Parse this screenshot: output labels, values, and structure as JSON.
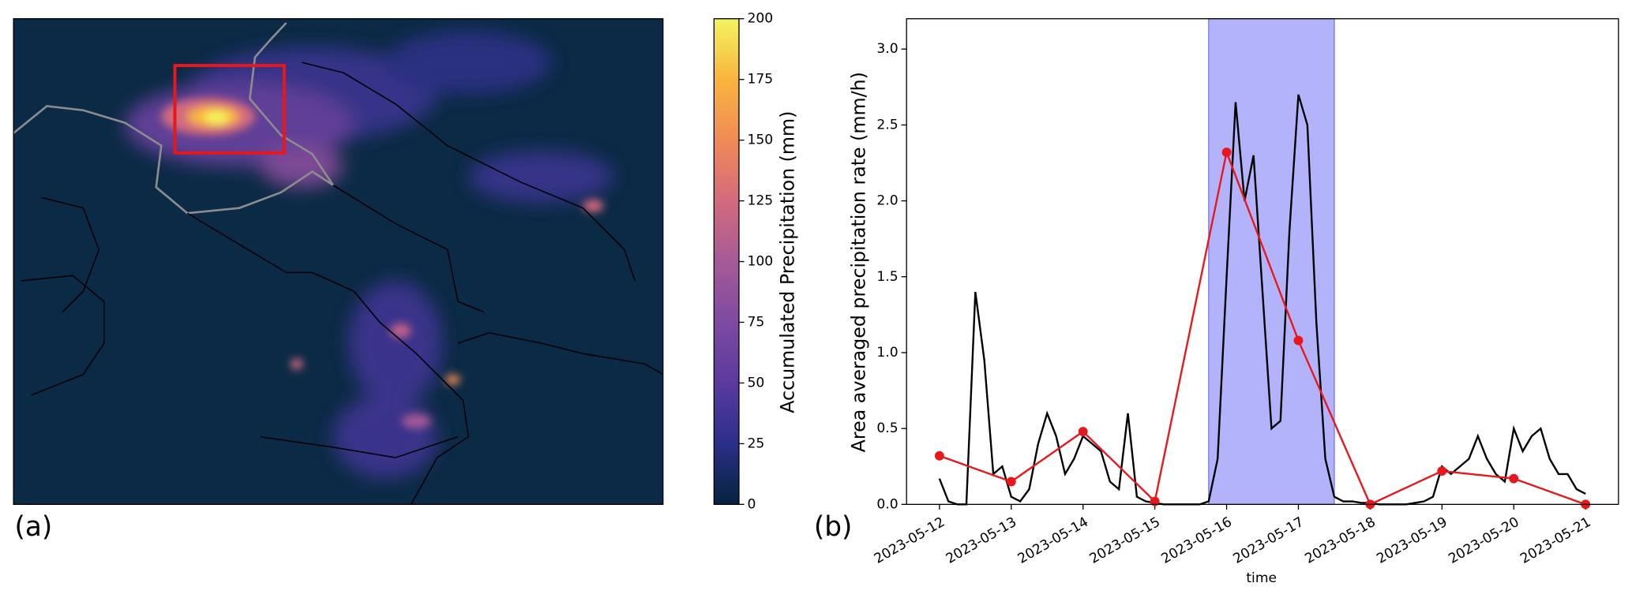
{
  "chart_data": [
    {
      "type": "heatmap",
      "panel_label": "(a)",
      "colorbar": {
        "label": "Accumulated Precipitation (mm)",
        "lim": [
          0,
          200
        ],
        "ticks": [
          0,
          25,
          50,
          75,
          100,
          125,
          150,
          175,
          200
        ],
        "colormap": [
          "#04233e",
          "#2b2f88",
          "#5b3a9e",
          "#7d4aa2",
          "#a65a96",
          "#d46a7d",
          "#f08a57",
          "#fab43e",
          "#f3f460"
        ]
      }
    },
    {
      "type": "line",
      "panel_label": "(b)",
      "xlabel": "time",
      "ylabel": "Area averaged precipitation rate (mm/h)",
      "xlim": [
        "2023-05-11T13:00",
        "2023-05-21T11:00"
      ],
      "xticks": [
        "2023-05-12",
        "2023-05-13",
        "2023-05-14",
        "2023-05-15",
        "2023-05-16",
        "2023-05-17",
        "2023-05-18",
        "2023-05-19",
        "2023-05-20",
        "2023-05-21"
      ],
      "ylim": [
        0,
        3.2
      ],
      "yticks": [
        {
          "value": 0,
          "label": "0.0"
        },
        0.5,
        {
          "value": 1,
          "label": "1.0"
        },
        1.5,
        {
          "value": 2,
          "label": "2.0"
        },
        2.5,
        {
          "value": 3,
          "label": "3.0"
        }
      ],
      "span": {
        "x": [
          "2023-05-15T18:00",
          "2023-05-17T12:00"
        ],
        "color": "#b3b3fb",
        "edge": "#7777f0"
      },
      "series": [
        {
          "color": "#000000",
          "marker": false,
          "x": [
            "2023-05-12T00:00",
            "2023-05-12T03:00",
            "2023-05-12T06:00",
            "2023-05-12T09:00",
            "2023-05-12T12:00",
            "2023-05-12T15:00",
            "2023-05-12T18:00",
            "2023-05-12T21:00",
            "2023-05-13T00:00",
            "2023-05-13T03:00",
            "2023-05-13T06:00",
            "2023-05-13T09:00",
            "2023-05-13T12:00",
            "2023-05-13T15:00",
            "2023-05-13T18:00",
            "2023-05-13T21:00",
            "2023-05-14T00:00",
            "2023-05-14T03:00",
            "2023-05-14T06:00",
            "2023-05-14T09:00",
            "2023-05-14T12:00",
            "2023-05-14T15:00",
            "2023-05-14T18:00",
            "2023-05-14T21:00",
            "2023-05-15T00:00",
            "2023-05-15T03:00",
            "2023-05-15T06:00",
            "2023-05-15T09:00",
            "2023-05-15T12:00",
            "2023-05-15T15:00",
            "2023-05-15T18:00",
            "2023-05-15T21:00",
            "2023-05-16T00:00",
            "2023-05-16T03:00",
            "2023-05-16T06:00",
            "2023-05-16T09:00",
            "2023-05-16T12:00",
            "2023-05-16T15:00",
            "2023-05-16T18:00",
            "2023-05-16T21:00",
            "2023-05-17T00:00",
            "2023-05-17T03:00",
            "2023-05-17T06:00",
            "2023-05-17T09:00",
            "2023-05-17T12:00",
            "2023-05-17T15:00",
            "2023-05-17T18:00",
            "2023-05-17T21:00",
            "2023-05-18T00:00",
            "2023-05-18T03:00",
            "2023-05-18T06:00",
            "2023-05-18T09:00",
            "2023-05-18T12:00",
            "2023-05-18T15:00",
            "2023-05-18T18:00",
            "2023-05-18T21:00",
            "2023-05-19T00:00",
            "2023-05-19T03:00",
            "2023-05-19T06:00",
            "2023-05-19T09:00",
            "2023-05-19T12:00",
            "2023-05-19T15:00",
            "2023-05-19T18:00",
            "2023-05-19T21:00",
            "2023-05-20T00:00",
            "2023-05-20T03:00",
            "2023-05-20T06:00",
            "2023-05-20T09:00",
            "2023-05-20T12:00",
            "2023-05-20T15:00",
            "2023-05-20T18:00",
            "2023-05-20T21:00",
            "2023-05-21T00:00"
          ],
          "values": [
            0.17,
            0.02,
            0,
            0,
            1.4,
            0.95,
            0.2,
            0.25,
            0.05,
            0.02,
            0.1,
            0.4,
            0.6,
            0.45,
            0.2,
            0.3,
            0.45,
            0.4,
            0.35,
            0.15,
            0.1,
            0.6,
            0.05,
            0.02,
            0.01,
            0,
            0,
            0,
            0,
            0,
            0.02,
            0.3,
            1.5,
            2.65,
            2,
            2.3,
            1.4,
            0.5,
            0.55,
            1.8,
            2.7,
            2.5,
            1.2,
            0.3,
            0.05,
            0.02,
            0.02,
            0.01,
            0.01,
            0,
            0,
            0,
            0,
            0.01,
            0.02,
            0.05,
            0.25,
            0.2,
            0.25,
            0.3,
            0.45,
            0.3,
            0.2,
            0.15,
            0.5,
            0.35,
            0.45,
            0.5,
            0.3,
            0.2,
            0.2,
            0.1,
            0.07
          ]
        },
        {
          "color": "#e8171c",
          "marker": true,
          "x": [
            "2023-05-12",
            "2023-05-13",
            "2023-05-14",
            "2023-05-15",
            "2023-05-16",
            "2023-05-17",
            "2023-05-18",
            "2023-05-19",
            "2023-05-20",
            "2023-05-21"
          ],
          "values": [
            0.32,
            0.15,
            0.48,
            0.02,
            2.32,
            1.08,
            0,
            0.22,
            0.17,
            0
          ]
        }
      ]
    }
  ]
}
